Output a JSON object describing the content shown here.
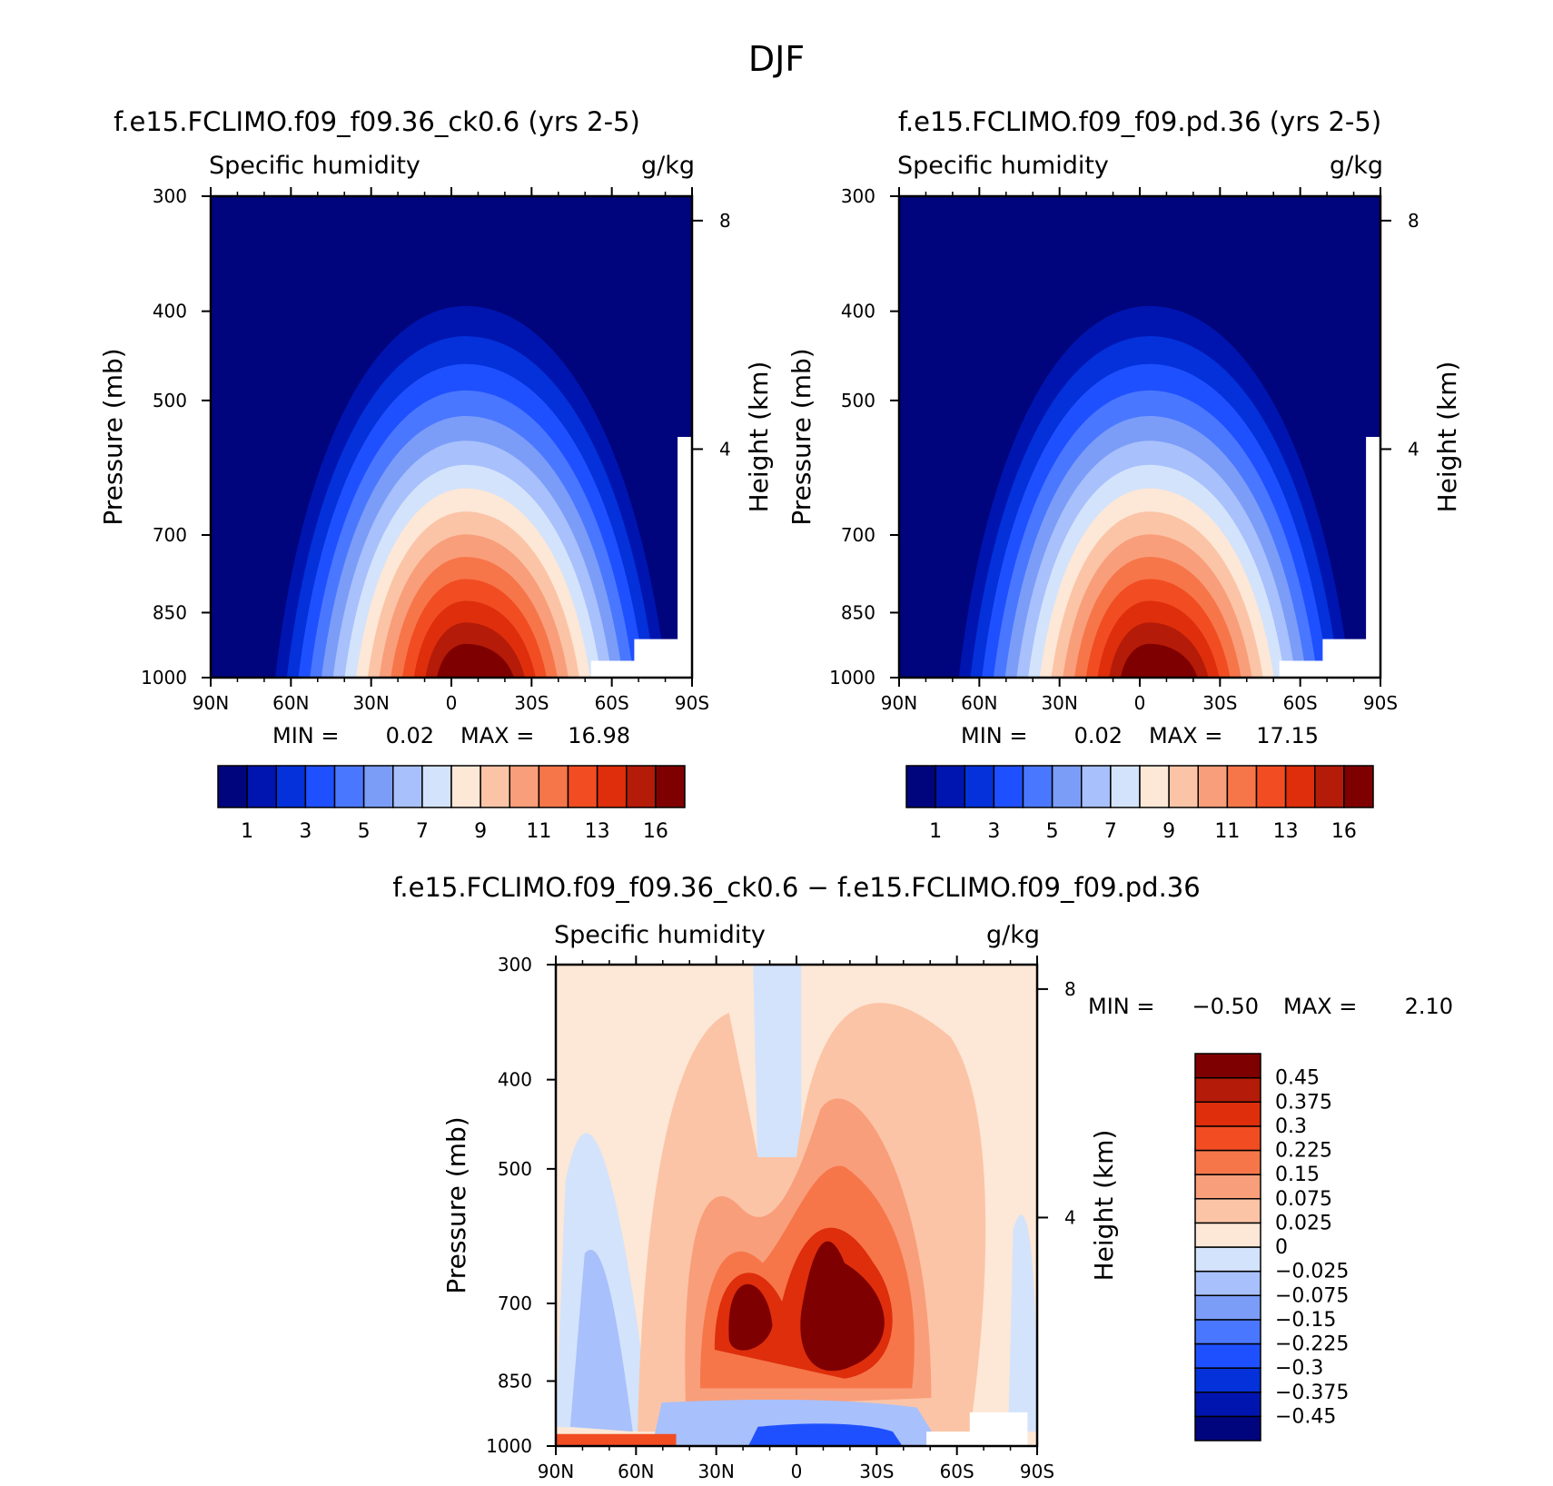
{
  "figure_title": "DJF",
  "chart_data": [
    {
      "type": "contour",
      "title": "f.e15.FCLIMO.f09_f09.36_ck0.6 (yrs 2-5)",
      "left_label": "Specific humidity",
      "right_label": "g/kg",
      "ylabel": "Pressure (mb)",
      "ylabel_right": "Height (km)",
      "xticks": [
        "90N",
        "60N",
        "30N",
        "0",
        "30S",
        "60S",
        "90S"
      ],
      "yticks": [
        300,
        400,
        500,
        700,
        850,
        1000
      ],
      "yticks_right": [
        8,
        4
      ],
      "stats": {
        "min_label": "MIN =",
        "min": "0.02",
        "max_label": "MAX =",
        "max": "16.98"
      },
      "levels": [
        1,
        2,
        3,
        4,
        5,
        6,
        7,
        8,
        9,
        10,
        11,
        12,
        13,
        14,
        16
      ],
      "colorbar_labels": [
        "1",
        "3",
        "5",
        "7",
        "9",
        "11",
        "13",
        "16"
      ],
      "colors": [
        "#00057d",
        "#0015b0",
        "#0431d9",
        "#1f50ff",
        "#4a77ff",
        "#7b9df8",
        "#a8c0fb",
        "#d3e3fb",
        "#fde7d6",
        "#fbc4a6",
        "#f99e7a",
        "#f6764a",
        "#f24d22",
        "#de2e0c",
        "#b41b08",
        "#7f0000"
      ],
      "peak": 16.98,
      "profile": {
        "lat": [
          -90,
          -60,
          -30,
          0,
          30,
          60,
          90
        ],
        "center": 3
      }
    },
    {
      "type": "contour",
      "title": "f.e15.FCLIMO.f09_f09.pd.36 (yrs 2-5)",
      "left_label": "Specific humidity",
      "right_label": "g/kg",
      "ylabel": "Pressure (mb)",
      "ylabel_right": "Height (km)",
      "xticks": [
        "90N",
        "60N",
        "30N",
        "0",
        "30S",
        "60S",
        "90S"
      ],
      "yticks": [
        300,
        400,
        500,
        700,
        850,
        1000
      ],
      "yticks_right": [
        8,
        4
      ],
      "stats": {
        "min_label": "MIN =",
        "min": "0.02",
        "max_label": "MAX =",
        "max": "17.15"
      },
      "levels": [
        1,
        2,
        3,
        4,
        5,
        6,
        7,
        8,
        9,
        10,
        11,
        12,
        13,
        14,
        16
      ],
      "colorbar_labels": [
        "1",
        "3",
        "5",
        "7",
        "9",
        "11",
        "13",
        "16"
      ],
      "colors": [
        "#00057d",
        "#0015b0",
        "#0431d9",
        "#1f50ff",
        "#4a77ff",
        "#7b9df8",
        "#a8c0fb",
        "#d3e3fb",
        "#fde7d6",
        "#fbc4a6",
        "#f99e7a",
        "#f6764a",
        "#f24d22",
        "#de2e0c",
        "#b41b08",
        "#7f0000"
      ],
      "peak": 17.15,
      "profile": {
        "lat": [
          -90,
          -60,
          -30,
          0,
          30,
          60,
          90
        ],
        "center": 3
      }
    },
    {
      "type": "contour",
      "title": "f.e15.FCLIMO.f09_f09.36_ck0.6 − f.e15.FCLIMO.f09_f09.pd.36",
      "left_label": "Specific humidity",
      "right_label": "g/kg",
      "ylabel": "Pressure (mb)",
      "ylabel_right": "Height (km)",
      "xticks": [
        "90N",
        "60N",
        "30N",
        "0",
        "30S",
        "60S",
        "90S"
      ],
      "yticks": [
        300,
        400,
        500,
        700,
        850,
        1000
      ],
      "yticks_right": [
        8,
        4
      ],
      "stats": {
        "min_label": "MIN =",
        "min": "−0.50",
        "max_label": "MAX =",
        "max": "2.10"
      },
      "levels": [
        -0.45,
        -0.375,
        -0.3,
        -0.225,
        -0.15,
        -0.075,
        -0.025,
        0,
        0.025,
        0.075,
        0.15,
        0.225,
        0.3,
        0.375,
        0.45
      ],
      "colorbar_labels": [
        "0.45",
        "0.375",
        "0.3",
        "0.225",
        "0.15",
        "0.075",
        "0.025",
        "0",
        "−0.025",
        "−0.075",
        "−0.15",
        "−0.225",
        "−0.3",
        "−0.375",
        "−0.45"
      ],
      "colors": [
        "#00057d",
        "#0015b0",
        "#0431d9",
        "#1f50ff",
        "#4a77ff",
        "#7b9df8",
        "#a8c0fb",
        "#d3e3fb",
        "#fde7d6",
        "#fbc4a6",
        "#f99e7a",
        "#f6764a",
        "#f24d22",
        "#de2e0c",
        "#b41b08",
        "#7f0000"
      ]
    }
  ]
}
